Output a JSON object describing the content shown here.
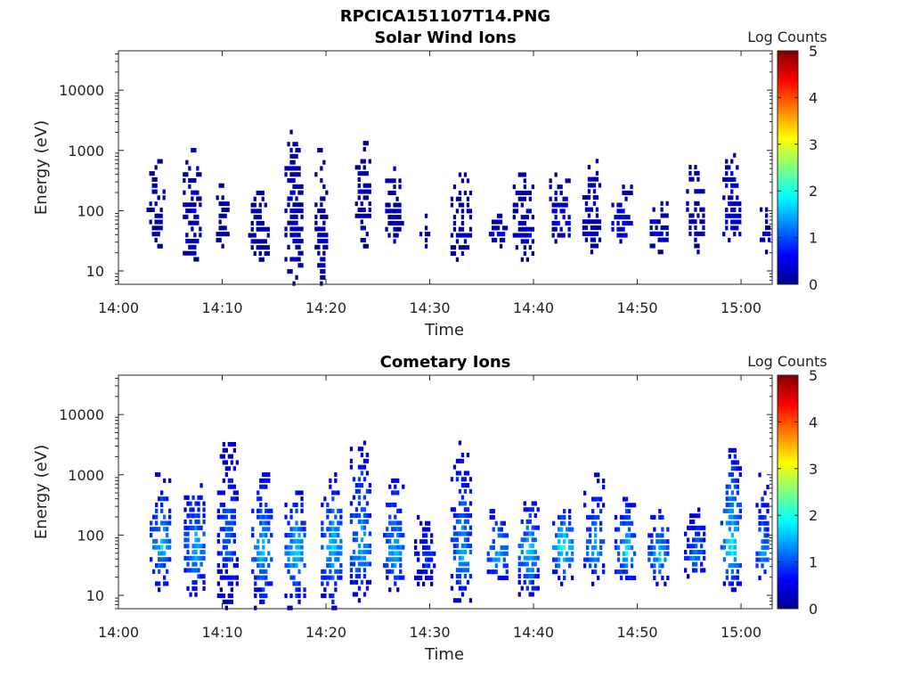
{
  "figure_title": "RPCICA151107T14.PNG",
  "colormap": "jet",
  "chart_data": [
    {
      "type": "heatmap",
      "title": "Solar Wind Ions",
      "xlabel": "Time",
      "ylabel": "Energy (eV)",
      "x_tick_labels": [
        "14:00",
        "14:10",
        "14:20",
        "14:30",
        "14:40",
        "14:50",
        "15:00"
      ],
      "x_range": [
        "14:00",
        "15:03"
      ],
      "y_scale": "log",
      "y_tick_labels": [
        "10",
        "100",
        "1000",
        "10000"
      ],
      "y_range": [
        6,
        45000
      ],
      "colorbar": {
        "label": "Log Counts",
        "ticks": [
          "0",
          "1",
          "2",
          "3",
          "4",
          "5"
        ],
        "range": [
          0,
          5
        ]
      },
      "bursts": [
        {
          "t": 3.5,
          "e": 40,
          "hi": 800,
          "lo": 25,
          "v": 0.3,
          "w": 0.8
        },
        {
          "t": 7.0,
          "e": 25,
          "hi": 1500,
          "lo": 12,
          "v": 0.4,
          "w": 0.8
        },
        {
          "t": 10.0,
          "e": 35,
          "hi": 300,
          "lo": 25,
          "v": 0.2,
          "w": 0.6
        },
        {
          "t": 13.5,
          "e": 35,
          "hi": 200,
          "lo": 15,
          "v": 0.3,
          "w": 1.0
        },
        {
          "t": 16.8,
          "e": 40,
          "hi": 2500,
          "lo": 6,
          "v": 0.4,
          "w": 0.8
        },
        {
          "t": 19.5,
          "e": 30,
          "hi": 1200,
          "lo": 6,
          "v": 0.3,
          "w": 0.6
        },
        {
          "t": 23.5,
          "e": 80,
          "hi": 1500,
          "lo": 25,
          "v": 0.3,
          "w": 0.7
        },
        {
          "t": 26.5,
          "e": 50,
          "hi": 500,
          "lo": 30,
          "v": 0.3,
          "w": 0.8
        },
        {
          "t": 29.5,
          "e": 35,
          "hi": 80,
          "lo": 25,
          "v": 0.2,
          "w": 0.5
        },
        {
          "t": 33.0,
          "e": 35,
          "hi": 400,
          "lo": 15,
          "v": 0.3,
          "w": 1.0
        },
        {
          "t": 36.5,
          "e": 40,
          "hi": 80,
          "lo": 25,
          "v": 0.5,
          "w": 0.8
        },
        {
          "t": 39.0,
          "e": 40,
          "hi": 400,
          "lo": 15,
          "v": 0.4,
          "w": 1.0
        },
        {
          "t": 42.5,
          "e": 70,
          "hi": 400,
          "lo": 30,
          "v": 0.6,
          "w": 1.0
        },
        {
          "t": 45.5,
          "e": 40,
          "hi": 800,
          "lo": 20,
          "v": 0.4,
          "w": 0.8
        },
        {
          "t": 48.5,
          "e": 60,
          "hi": 300,
          "lo": 30,
          "v": 0.6,
          "w": 1.0
        },
        {
          "t": 52.0,
          "e": 35,
          "hi": 150,
          "lo": 20,
          "v": 0.4,
          "w": 0.8
        },
        {
          "t": 55.5,
          "e": 35,
          "hi": 600,
          "lo": 20,
          "v": 0.3,
          "w": 0.8
        },
        {
          "t": 59.0,
          "e": 60,
          "hi": 1000,
          "lo": 25,
          "v": 0.5,
          "w": 0.8
        },
        {
          "t": 62.3,
          "e": 40,
          "hi": 120,
          "lo": 20,
          "v": 0.4,
          "w": 0.5
        }
      ]
    },
    {
      "type": "heatmap",
      "title": "Cometary Ions",
      "xlabel": "Time",
      "ylabel": "Energy (eV)",
      "x_tick_labels": [
        "14:00",
        "14:10",
        "14:20",
        "14:30",
        "14:40",
        "14:50",
        "15:00"
      ],
      "x_range": [
        "14:00",
        "15:03"
      ],
      "y_scale": "log",
      "y_tick_labels": [
        "10",
        "100",
        "1000",
        "10000"
      ],
      "y_range": [
        6,
        45000
      ],
      "colorbar": {
        "label": "Log Counts",
        "ticks": [
          "0",
          "1",
          "2",
          "3",
          "4",
          "5"
        ],
        "range": [
          0,
          5
        ]
      },
      "bursts": [
        {
          "t": 4.0,
          "e": 60,
          "hi": 1000,
          "lo": 12,
          "v": 1.6,
          "w": 1.0
        },
        {
          "t": 7.3,
          "e": 50,
          "hi": 800,
          "lo": 10,
          "v": 1.6,
          "w": 1.0
        },
        {
          "t": 10.5,
          "e": 70,
          "hi": 4000,
          "lo": 6,
          "v": 1.2,
          "w": 1.0
        },
        {
          "t": 13.8,
          "e": 50,
          "hi": 1000,
          "lo": 6,
          "v": 1.6,
          "w": 1.0
        },
        {
          "t": 17.0,
          "e": 50,
          "hi": 500,
          "lo": 6,
          "v": 1.8,
          "w": 1.0
        },
        {
          "t": 20.5,
          "e": 60,
          "hi": 1000,
          "lo": 6,
          "v": 1.7,
          "w": 1.0
        },
        {
          "t": 23.3,
          "e": 50,
          "hi": 4000,
          "lo": 8,
          "v": 1.6,
          "w": 1.0
        },
        {
          "t": 26.5,
          "e": 40,
          "hi": 1000,
          "lo": 12,
          "v": 1.6,
          "w": 1.0
        },
        {
          "t": 29.5,
          "e": 35,
          "hi": 200,
          "lo": 15,
          "v": 1.0,
          "w": 1.0
        },
        {
          "t": 33.0,
          "e": 35,
          "hi": 4000,
          "lo": 8,
          "v": 1.5,
          "w": 1.0
        },
        {
          "t": 36.5,
          "e": 40,
          "hi": 300,
          "lo": 15,
          "v": 1.6,
          "w": 1.0
        },
        {
          "t": 39.5,
          "e": 50,
          "hi": 400,
          "lo": 8,
          "v": 1.7,
          "w": 1.0
        },
        {
          "t": 42.8,
          "e": 60,
          "hi": 300,
          "lo": 15,
          "v": 2.0,
          "w": 1.0
        },
        {
          "t": 45.8,
          "e": 50,
          "hi": 1000,
          "lo": 15,
          "v": 1.5,
          "w": 1.0
        },
        {
          "t": 48.8,
          "e": 50,
          "hi": 400,
          "lo": 15,
          "v": 1.8,
          "w": 1.0
        },
        {
          "t": 52.0,
          "e": 40,
          "hi": 300,
          "lo": 15,
          "v": 1.6,
          "w": 1.0
        },
        {
          "t": 55.5,
          "e": 40,
          "hi": 300,
          "lo": 20,
          "v": 1.3,
          "w": 1.0
        },
        {
          "t": 59.0,
          "e": 50,
          "hi": 3000,
          "lo": 12,
          "v": 1.9,
          "w": 1.0
        },
        {
          "t": 62.0,
          "e": 40,
          "hi": 1000,
          "lo": 15,
          "v": 1.5,
          "w": 0.6
        }
      ]
    }
  ]
}
